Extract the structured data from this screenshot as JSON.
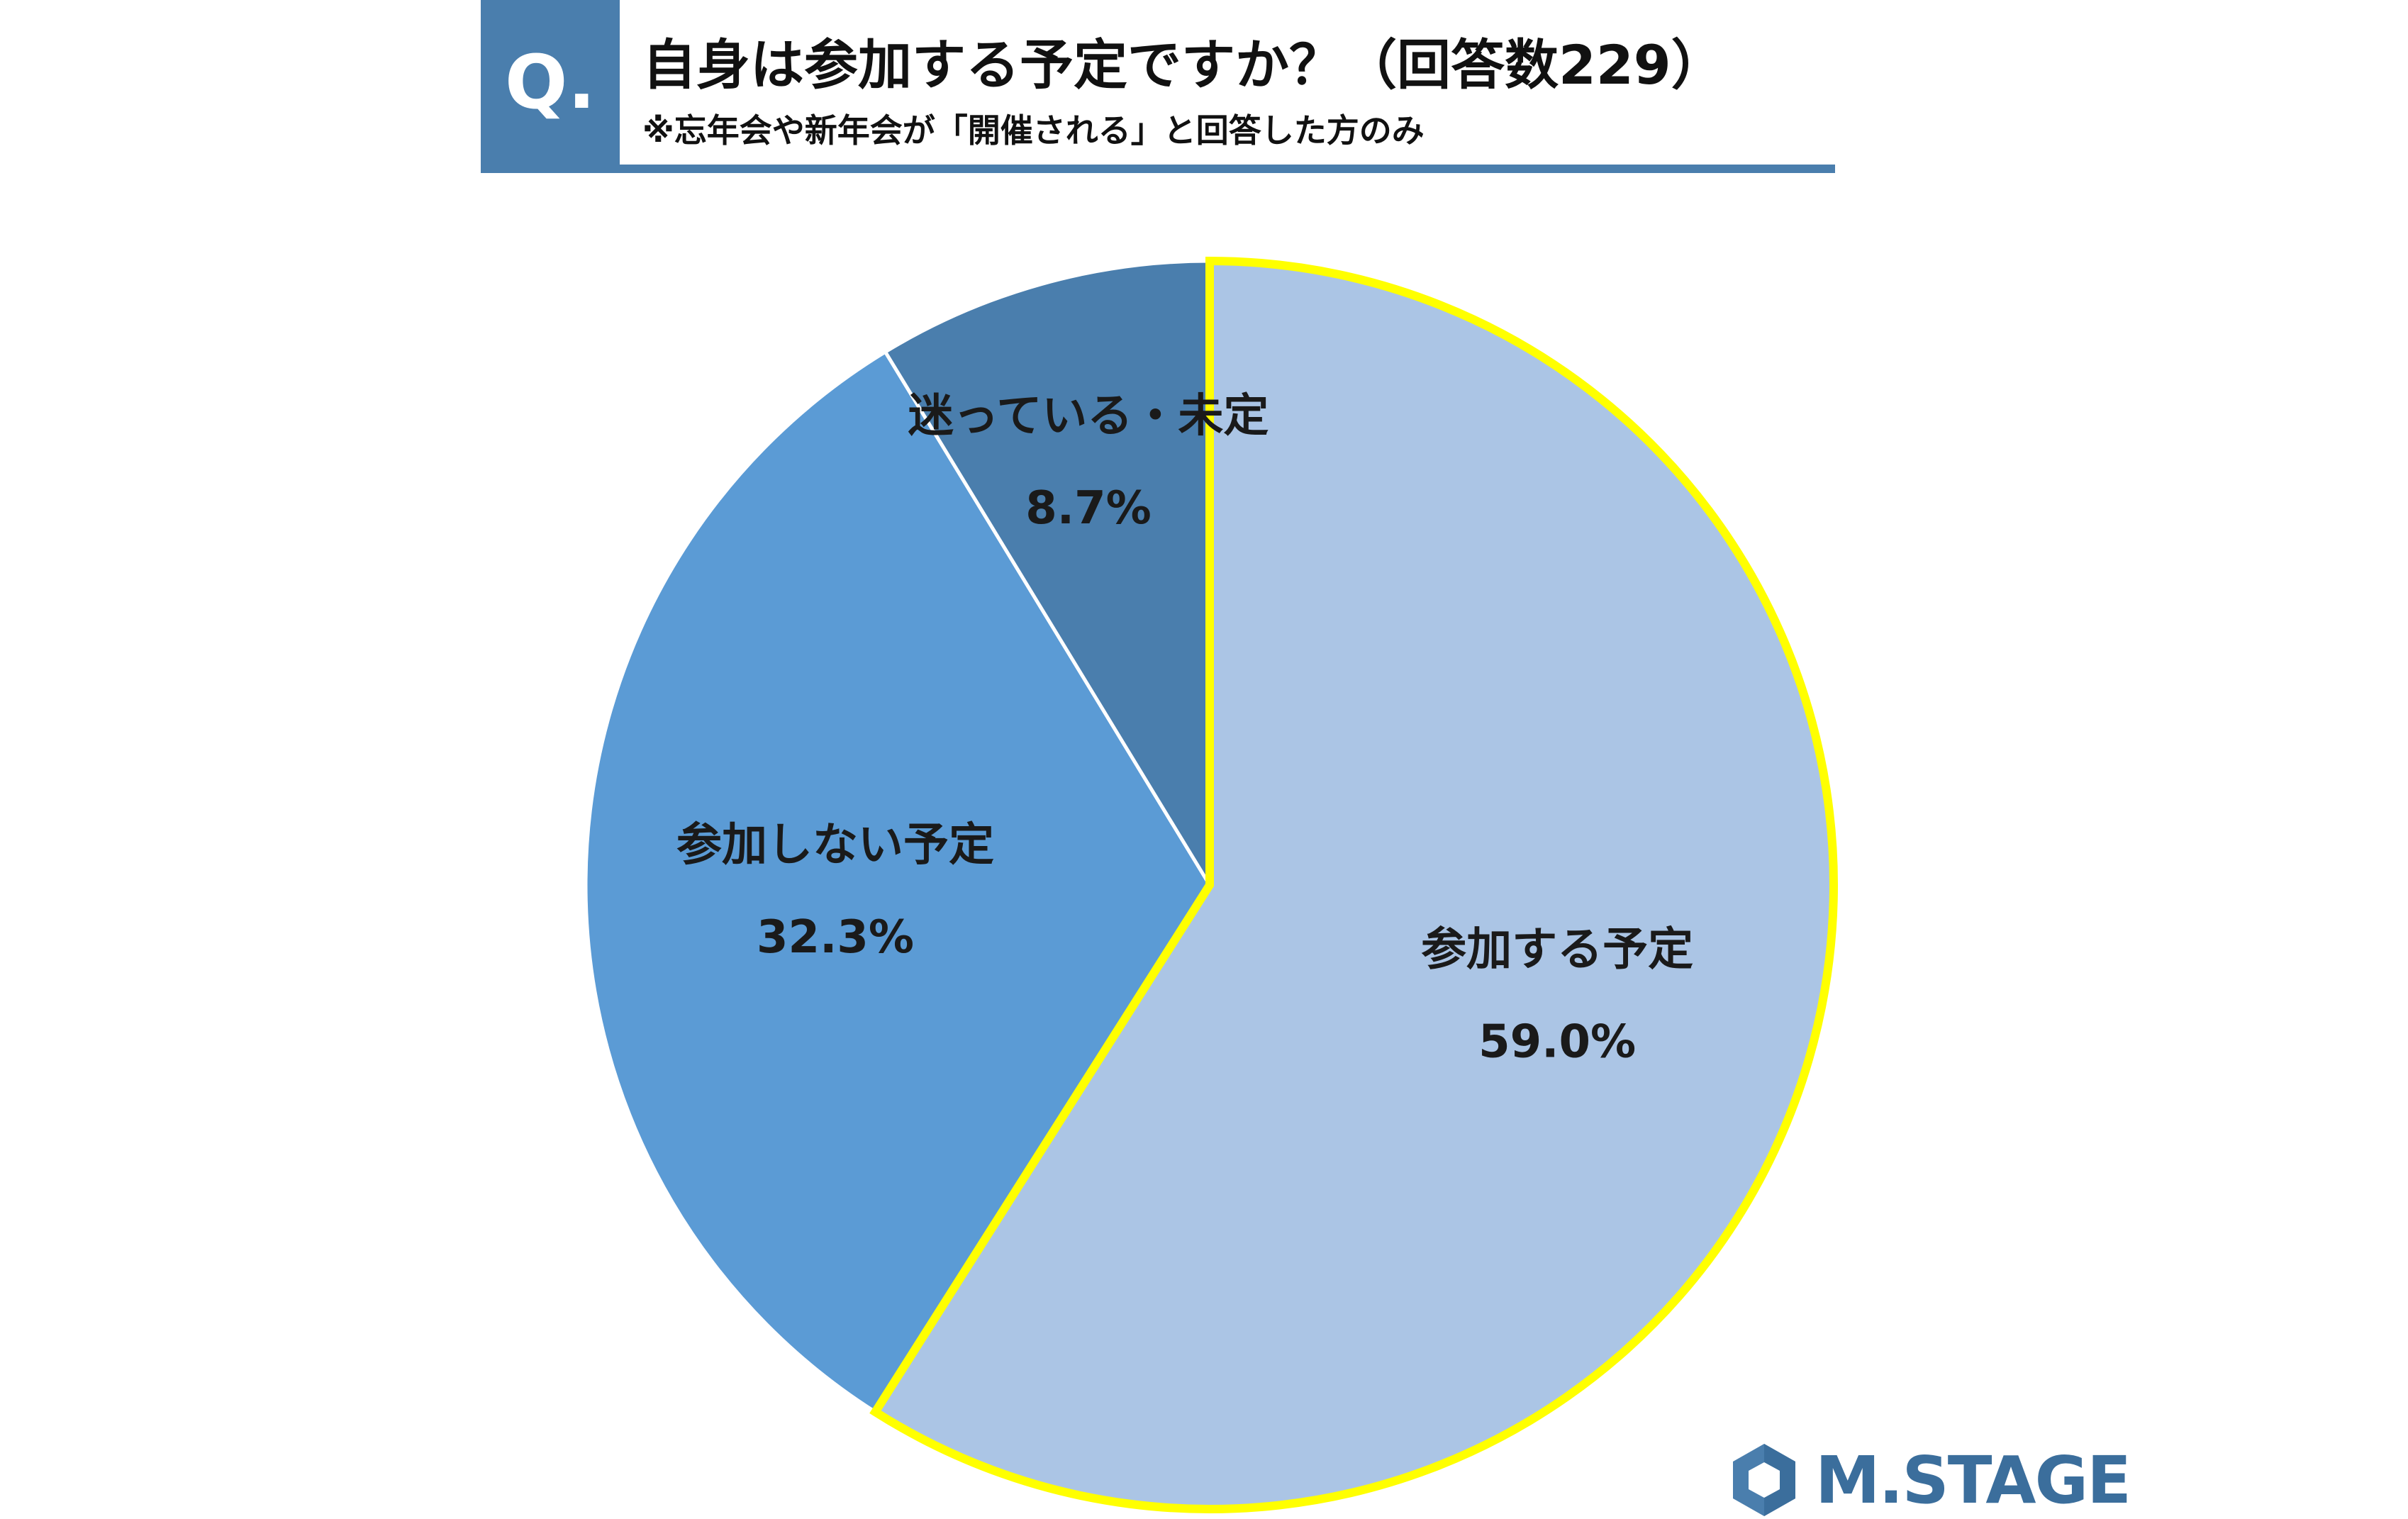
{
  "header": {
    "badge": "Q.",
    "title": "自身は参加する予定ですか？（回答数229）",
    "subtitle": "※忘年会や新年会が「開催される」と回答した方のみ",
    "accent_color": "#4a7ead"
  },
  "chart_data": {
    "type": "pie",
    "start_angle_deg": 0,
    "direction": "clockwise",
    "slices": [
      {
        "label": "参加する予定",
        "value_label": "59.0%",
        "value": 59.0,
        "color": "#abc5e5",
        "highlighted": true,
        "outline_color": "#ffff00"
      },
      {
        "label": "参加しない予定",
        "value_label": "32.3%",
        "value": 32.3,
        "color": "#5b9bd5",
        "highlighted": false
      },
      {
        "label": "迷っている・未定",
        "value_label": "8.7%",
        "value": 8.7,
        "color": "#4a7ead",
        "highlighted": false
      }
    ]
  },
  "logo": {
    "text": "M.STAGE",
    "icon": "hexagon-logo-icon",
    "color": "#3b6e9c"
  }
}
